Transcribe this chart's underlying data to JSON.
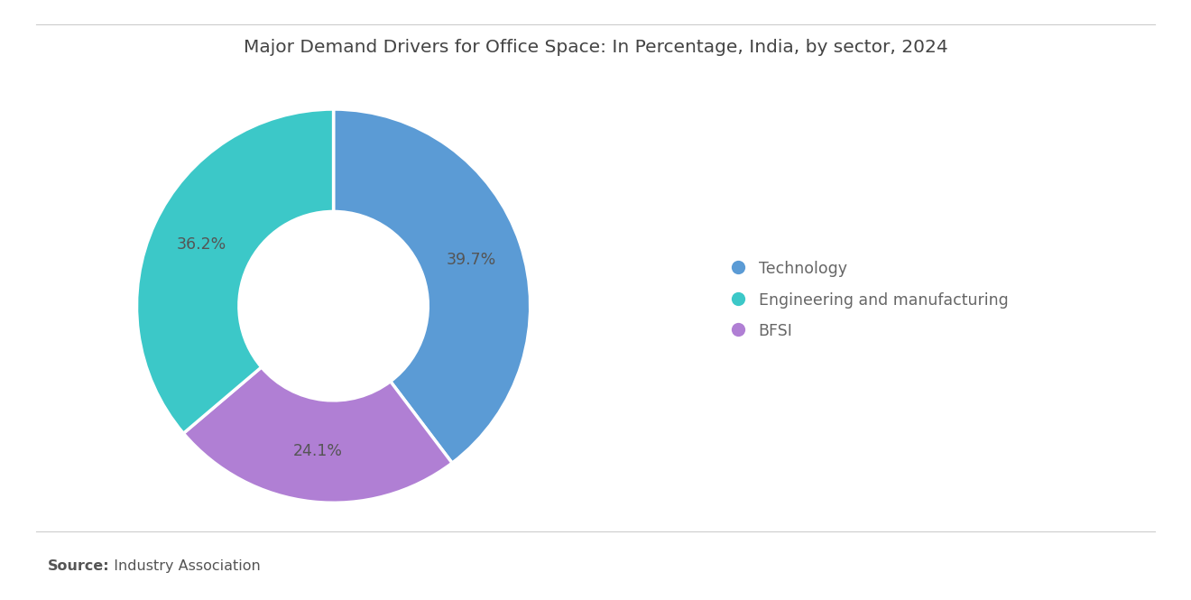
{
  "title": "Major Demand Drivers for Office Space: In Percentage, India, by sector, 2024",
  "slices": [
    39.7,
    24.1,
    36.2
  ],
  "labels": [
    "Technology",
    "BFSI",
    "Engineering and manufacturing"
  ],
  "legend_labels": [
    "Technology",
    "Engineering and manufacturing",
    "BFSI"
  ],
  "colors": [
    "#5B9BD5",
    "#B07FD4",
    "#3CC8C8"
  ],
  "legend_colors": [
    "#5B9BD5",
    "#3CC8C8",
    "#B07FD4"
  ],
  "pct_labels": [
    "39.7%",
    "24.1%",
    "36.2%"
  ],
  "source_bold": "Source:",
  "source_rest": "  Industry Association",
  "background_color": "#ffffff",
  "title_fontsize": 14.5,
  "label_fontsize": 12.5,
  "legend_fontsize": 12.5,
  "source_fontsize": 11.5
}
